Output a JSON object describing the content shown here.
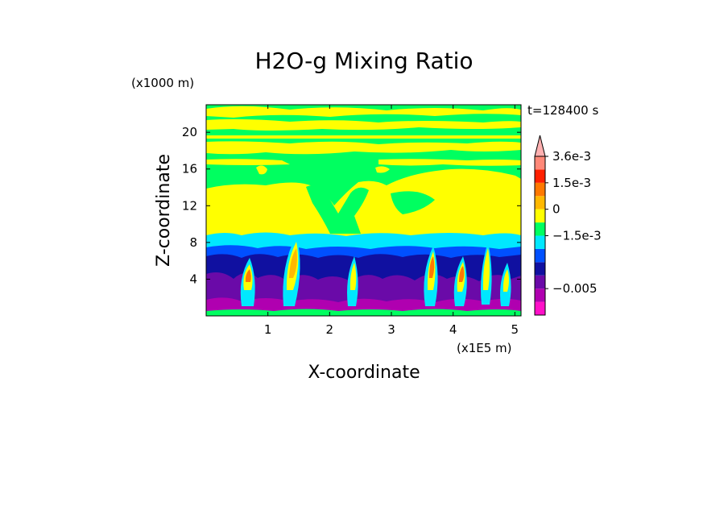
{
  "chart_data": {
    "type": "heatmap",
    "title": "H2O-g Mixing Ratio",
    "xlabel": "X-coordinate",
    "ylabel": "Z-coordinate",
    "x_unit": "(x1E5 m)",
    "y_unit": "(x1000 m)",
    "time_label": "t=128400 s",
    "xlim": [
      0,
      5.1
    ],
    "ylim": [
      0,
      23
    ],
    "x_ticks": [
      "1",
      "2",
      "3",
      "4",
      "5"
    ],
    "y_ticks": [
      "4",
      "8",
      "12",
      "16",
      "20"
    ],
    "colorbar": {
      "levels": [
        "-0.006",
        "-0.005",
        "-0.004",
        "-0.003",
        "-0.002",
        "-0.0015",
        "-0.001",
        "-0.0005",
        "0",
        "0.0005",
        "0.001",
        "0.0015",
        "0.002",
        "0.0028",
        "0.0036"
      ],
      "tick_labels": [
        "3.6e-3",
        "1.5e-3",
        "0",
        "−1.5e-3",
        "−0.005"
      ],
      "colors": [
        "#ff10c8",
        "#b000b0",
        "#6a0aa8",
        "#1010a0",
        "#0050ff",
        "#00e8ff",
        "#00ff60",
        "#ffff00",
        "#ffb800",
        "#ff7800",
        "#ff2000",
        "#ff8878",
        "#ffb0b0"
      ]
    },
    "bands": [
      {
        "z": [
          0,
          0.6
        ],
        "color": "#00ff60"
      },
      {
        "z": [
          0.6,
          4.0
        ],
        "color": "#6a0aa8"
      },
      {
        "z": [
          4.0,
          6.5
        ],
        "color": "#1010a0"
      },
      {
        "z": [
          6.5,
          7.5
        ],
        "color": "#0050ff"
      },
      {
        "z": [
          7.5,
          9.0
        ],
        "color": "#00e8ff"
      },
      {
        "z": [
          9.0,
          23
        ],
        "color": "#00ff60"
      }
    ]
  }
}
